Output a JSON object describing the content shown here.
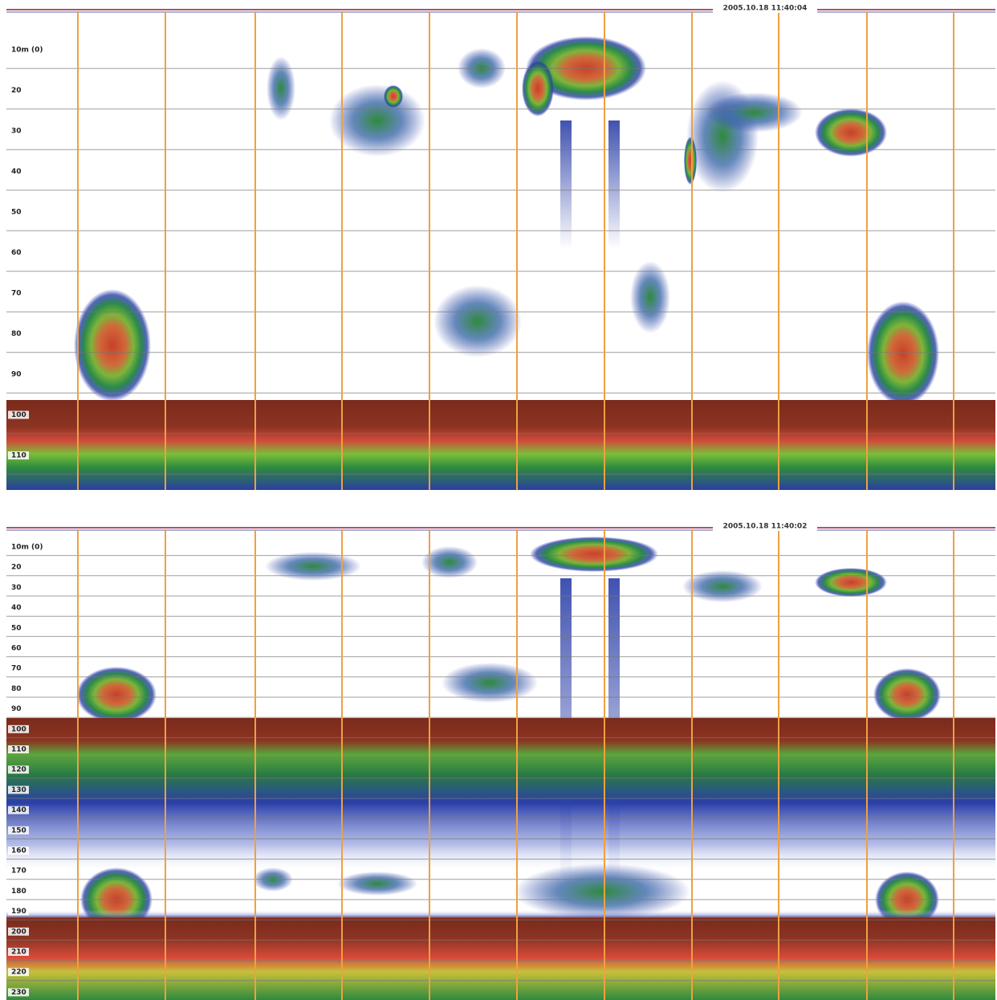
{
  "panels": [
    {
      "timestamp": "2005.10.18 11:40:04",
      "depth_labels": [
        "10m (0)",
        "20",
        "30",
        "40",
        "50",
        "60",
        "70",
        "80",
        "90",
        "100",
        "110"
      ]
    },
    {
      "timestamp": "2005.10.18 11:40:02",
      "depth_labels": [
        "10m (0)",
        "20",
        "30",
        "40",
        "50",
        "60",
        "70",
        "80",
        "90",
        "100",
        "110",
        "120",
        "130",
        "140",
        "150",
        "160",
        "170",
        "180",
        "190",
        "200",
        "210",
        "220",
        "230"
      ]
    }
  ]
}
